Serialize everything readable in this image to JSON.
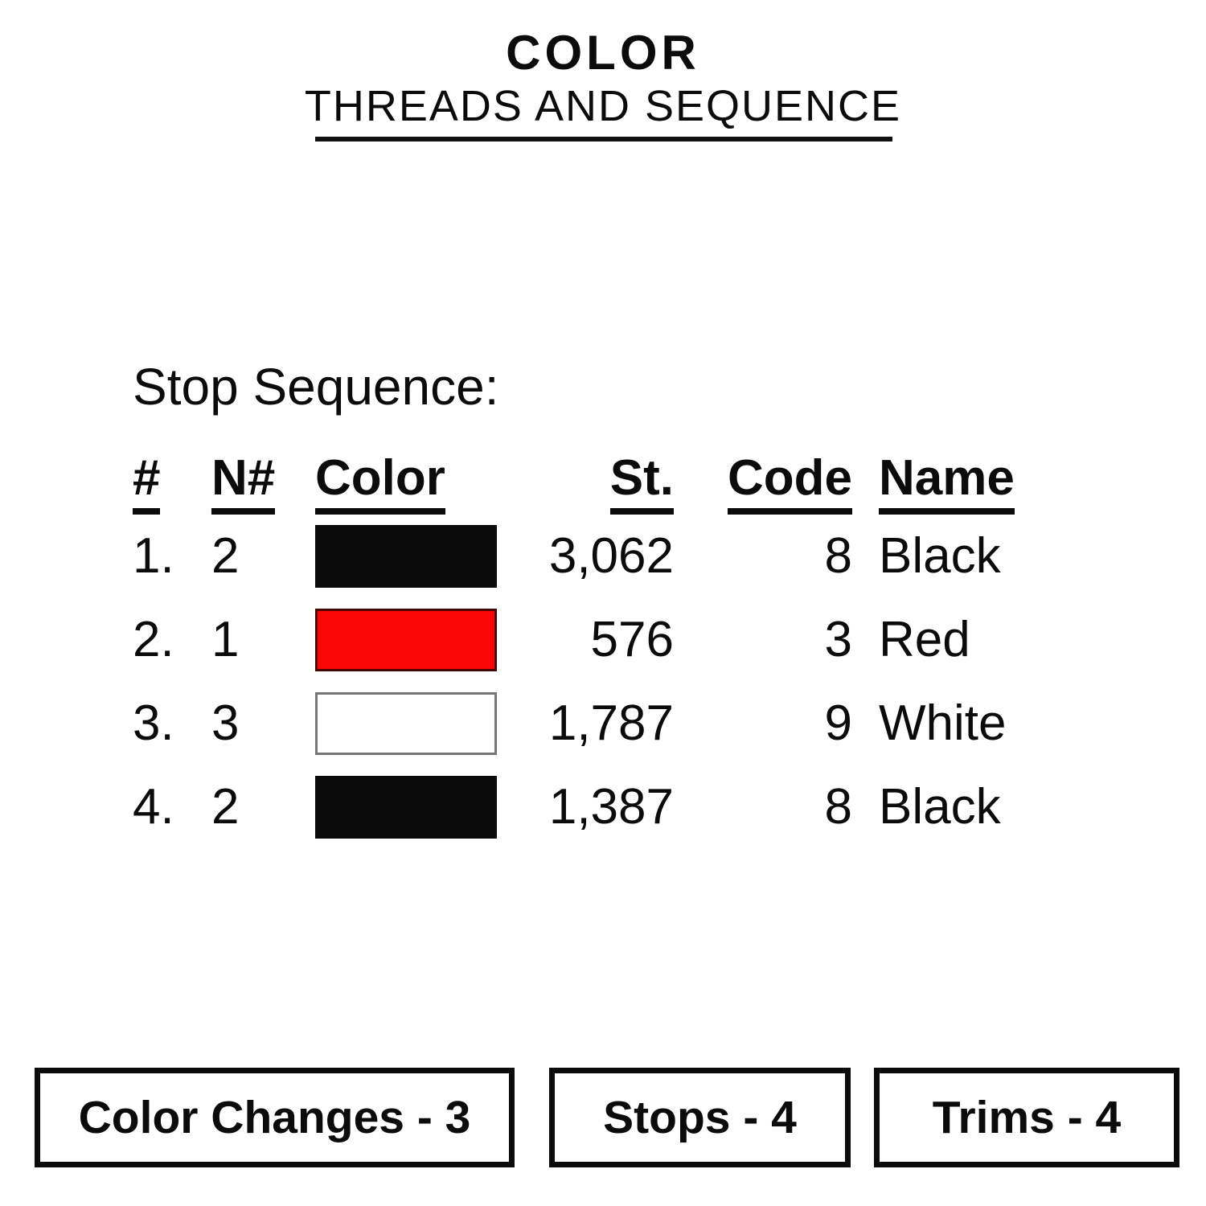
{
  "page": {
    "background": "#ffffff",
    "text_color": "#0b0b0b",
    "rule_color": "#111111"
  },
  "header": {
    "title": "COLOR",
    "subtitle": "THREADS AND SEQUENCE"
  },
  "section": {
    "heading": "Stop Sequence:"
  },
  "table": {
    "columns": [
      "#",
      "N#",
      "Color",
      "St.",
      "Code",
      "Name"
    ],
    "rows": [
      {
        "num": "1.",
        "needle": "2",
        "swatch_color": "#0b0b0b",
        "swatch_border": "#0b0b0b",
        "stitches": "3,062",
        "code": "8",
        "name": "Black"
      },
      {
        "num": "2.",
        "needle": "1",
        "swatch_color": "#fa0707",
        "swatch_border": "#4a0303",
        "stitches": "576",
        "code": "3",
        "name": "Red"
      },
      {
        "num": "3.",
        "needle": "3",
        "swatch_color": "#ffffff",
        "swatch_border": "#777777",
        "stitches": "1,787",
        "code": "9",
        "name": "White"
      },
      {
        "num": "4.",
        "needle": "2",
        "swatch_color": "#0b0b0b",
        "swatch_border": "#0b0b0b",
        "stitches": "1,387",
        "code": "8",
        "name": "Black"
      }
    ]
  },
  "footer": {
    "boxes": [
      {
        "label": "Color Changes - 3"
      },
      {
        "label": "Stops - 4"
      },
      {
        "label": "Trims - 4"
      }
    ]
  }
}
